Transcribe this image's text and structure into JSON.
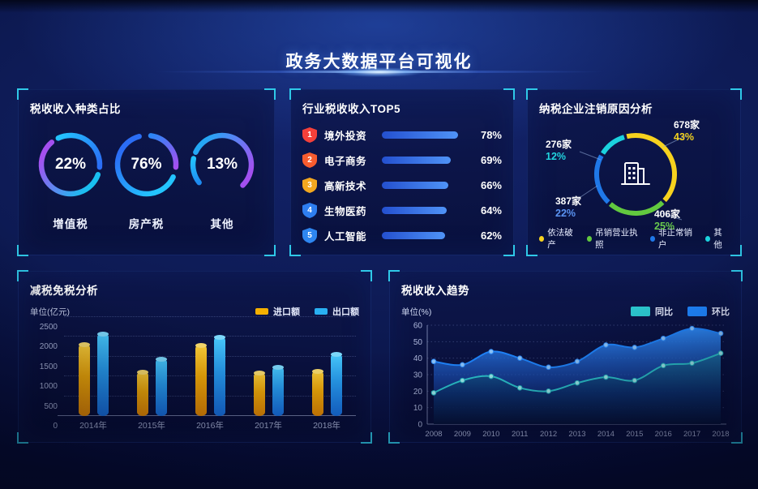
{
  "page": {
    "title": "政务大数据平台可视化"
  },
  "colors": {
    "bracket": "#2fc9e8",
    "accent_blue": "#1f86ff",
    "accent_teal": "#2cc8d0",
    "accent_yellow": "#f5b000"
  },
  "panels": {
    "tax_type": {
      "title": "税收收入种类占比",
      "rings": [
        {
          "percent": "22%",
          "label": "增值税"
        },
        {
          "percent": "76%",
          "label": "房产税"
        },
        {
          "percent": "13%",
          "label": "其他"
        }
      ]
    },
    "industry": {
      "title": "行业税收收入TOP5",
      "rows": [
        {
          "rank": "1",
          "label": "境外投资",
          "percent": "78%",
          "badge_color": "#f4403a"
        },
        {
          "rank": "2",
          "label": "电子商务",
          "percent": "69%",
          "badge_color": "#f75c2f"
        },
        {
          "rank": "3",
          "label": "高新技术",
          "percent": "66%",
          "badge_color": "#f2a71f"
        },
        {
          "rank": "4",
          "label": "生物医药",
          "percent": "64%",
          "badge_color": "#2e7ef0"
        },
        {
          "rank": "5",
          "label": "人工智能",
          "percent": "62%",
          "badge_color": "#2e86f0"
        }
      ]
    },
    "cancellation": {
      "title": "纳税企业注销原因分析",
      "callouts": [
        {
          "count": "678家",
          "percent": "43%",
          "color": "#f2d21e"
        },
        {
          "count": "276家",
          "percent": "12%",
          "color": "#22d4de"
        },
        {
          "count": "387家",
          "percent": "22%",
          "color": "#5a93f2"
        },
        {
          "count": "406家",
          "percent": "25%",
          "color": "#68c94d"
        }
      ],
      "legend": [
        "依法破产",
        "吊销营业执照",
        "非正常销户",
        "其他"
      ]
    },
    "reduction": {
      "title": "减税免税分析",
      "unit": "单位(亿元)",
      "legend": [
        "进口额",
        "出口额"
      ]
    },
    "trend": {
      "title": "税收收入趋势",
      "unit": "单位(%)",
      "legend": [
        "同比",
        "环比"
      ]
    }
  },
  "chart_data": [
    {
      "id": "tax_type_rings",
      "type": "pie",
      "title": "税收收入种类占比",
      "items": [
        {
          "label": "增值税",
          "value": 22
        },
        {
          "label": "房产税",
          "value": 76
        },
        {
          "label": "其他",
          "value": 13
        }
      ],
      "unit": "%"
    },
    {
      "id": "industry_top5",
      "type": "bar",
      "orientation": "horizontal",
      "title": "行业税收收入TOP5",
      "categories": [
        "境外投资",
        "电子商务",
        "高新技术",
        "生物医药",
        "人工智能"
      ],
      "values": [
        78,
        69,
        66,
        64,
        62
      ],
      "unit": "%"
    },
    {
      "id": "cancellation",
      "type": "pie",
      "title": "纳税企业注销原因分析",
      "slices": [
        {
          "label": "依法破产",
          "count": 678,
          "percent": 43,
          "color": "#f7d21e"
        },
        {
          "label": "吊销营业执照",
          "count": 406,
          "percent": 25,
          "color": "#62c93f"
        },
        {
          "label": "非正常销户",
          "count": 387,
          "percent": 22,
          "color": "#1f78e8"
        },
        {
          "label": "其他",
          "count": 276,
          "percent": 12,
          "color": "#1bd2de"
        }
      ],
      "legend_position": "bottom"
    },
    {
      "id": "tax_reduction",
      "type": "bar",
      "title": "减税免税分析",
      "ylabel": "单位(亿元)",
      "categories": [
        "2014年",
        "2015年",
        "2016年",
        "2017年",
        "2018年"
      ],
      "series": [
        {
          "name": "进口额",
          "color": "#f5b000",
          "values": [
            1830,
            1130,
            1800,
            1100,
            1150
          ]
        },
        {
          "name": "出口额",
          "color": "#29b0f2",
          "values": [
            2100,
            1450,
            2000,
            1250,
            1580
          ]
        }
      ],
      "ylim": [
        0,
        2500
      ],
      "yticks": [
        0,
        500,
        1000,
        1500,
        2000,
        2500
      ],
      "grid": "dotted",
      "legend_position": "top-right"
    },
    {
      "id": "tax_trend",
      "type": "area",
      "title": "税收收入趋势",
      "ylabel": "单位(%)",
      "x": [
        "2008",
        "2009",
        "2010",
        "2011",
        "2012",
        "2013",
        "2014",
        "2015",
        "2016",
        "2017",
        "2018"
      ],
      "series": [
        {
          "name": "同比",
          "color": "#2cc8d0",
          "values": [
            19,
            26.5,
            29,
            22,
            20,
            25,
            28.5,
            26.5,
            35.5,
            37,
            43
          ]
        },
        {
          "name": "环比",
          "color": "#1f86ff",
          "values": [
            38,
            36,
            44,
            40,
            34.5,
            38,
            48,
            46.5,
            52,
            58,
            55
          ]
        }
      ],
      "ylim": [
        0,
        60
      ],
      "yticks": [
        0,
        10,
        20,
        30,
        40,
        50,
        60
      ],
      "grid": "dotted",
      "legend_position": "top-right"
    }
  ]
}
